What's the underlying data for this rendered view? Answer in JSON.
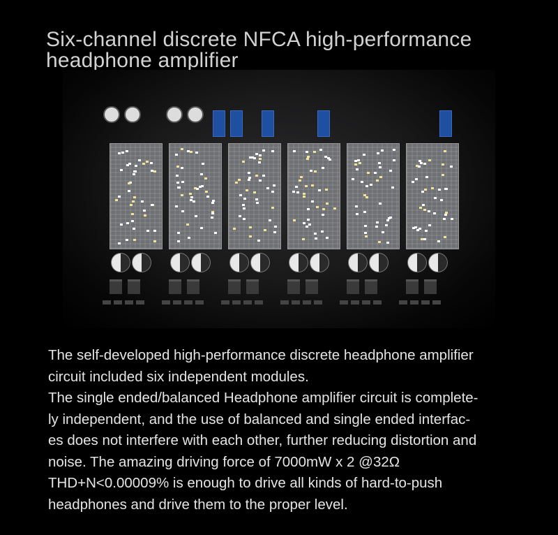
{
  "title": {
    "lines": [
      "Six-channel discrete NFCA high-performance",
      "headphone amplifier"
    ]
  },
  "board": {
    "module_count": 6,
    "colors": {
      "module": "#6f7073",
      "trimpot": "#1f4fa0",
      "background": "#000000"
    }
  },
  "description": {
    "lines": [
      "The self-developed high-performance discrete headphone amplifier",
      "circuit included six independent modules.",
      "The single ended/balanced Headphone amplifier circuit is complete-",
      "ly independent, and the use of balanced and single ended interfac-",
      "es does not interfere with each other, further reducing distortion and",
      "noise. The amazing driving force of 7000mW x 2 @32Ω",
      "THD+N<0.00009% is enough to drive all kinds of hard-to-push",
      "headphones and drive them to the proper level."
    ]
  }
}
